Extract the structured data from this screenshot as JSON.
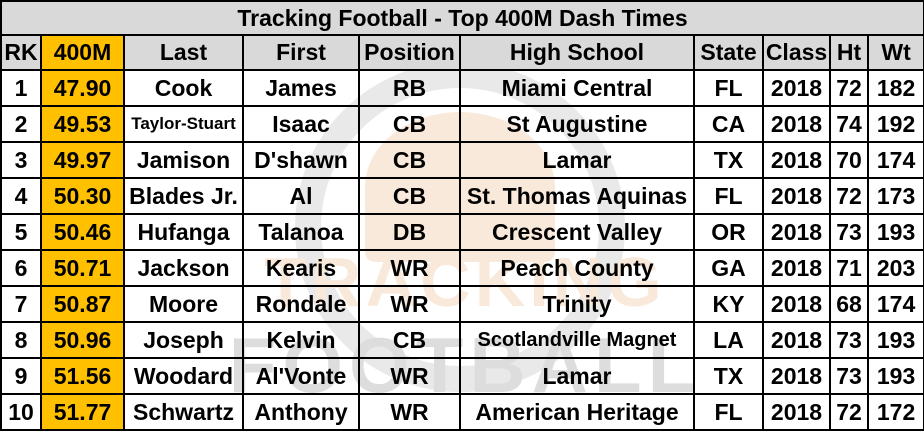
{
  "title": "Tracking Football - Top 400M Dash Times",
  "headers": [
    "RK",
    "400M",
    "Last",
    "First",
    "Position",
    "High School",
    "State",
    "Class",
    "Ht",
    "Wt"
  ],
  "rows": [
    {
      "rk": "1",
      "time": "47.90",
      "last": "Cook",
      "first": "James",
      "pos": "RB",
      "school": "Miami Central",
      "state": "FL",
      "class": "2018",
      "ht": "72",
      "wt": "182"
    },
    {
      "rk": "2",
      "time": "49.53",
      "last": "Taylor-Stuart",
      "first": "Isaac",
      "pos": "CB",
      "school": "St Augustine",
      "state": "CA",
      "class": "2018",
      "ht": "74",
      "wt": "192"
    },
    {
      "rk": "3",
      "time": "49.97",
      "last": "Jamison",
      "first": "D'shawn",
      "pos": "CB",
      "school": "Lamar",
      "state": "TX",
      "class": "2018",
      "ht": "70",
      "wt": "174"
    },
    {
      "rk": "4",
      "time": "50.30",
      "last": "Blades Jr.",
      "first": "Al",
      "pos": "CB",
      "school": "St. Thomas Aquinas",
      "state": "FL",
      "class": "2018",
      "ht": "72",
      "wt": "173"
    },
    {
      "rk": "5",
      "time": "50.46",
      "last": "Hufanga",
      "first": "Talanoa",
      "pos": "DB",
      "school": "Crescent Valley",
      "state": "OR",
      "class": "2018",
      "ht": "73",
      "wt": "193"
    },
    {
      "rk": "6",
      "time": "50.71",
      "last": "Jackson",
      "first": "Kearis",
      "pos": "WR",
      "school": "Peach County",
      "state": "GA",
      "class": "2018",
      "ht": "71",
      "wt": "203"
    },
    {
      "rk": "7",
      "time": "50.87",
      "last": "Moore",
      "first": "Rondale",
      "pos": "WR",
      "school": "Trinity",
      "state": "KY",
      "class": "2018",
      "ht": "68",
      "wt": "174"
    },
    {
      "rk": "8",
      "time": "50.96",
      "last": "Joseph",
      "first": "Kelvin",
      "pos": "CB",
      "school": "Scotlandville Magnet",
      "state": "LA",
      "class": "2018",
      "ht": "73",
      "wt": "193"
    },
    {
      "rk": "9",
      "time": "51.56",
      "last": "Woodard",
      "first": "Al'Vonte",
      "pos": "WR",
      "school": "Lamar",
      "state": "TX",
      "class": "2018",
      "ht": "73",
      "wt": "193"
    },
    {
      "rk": "10",
      "time": "51.77",
      "last": "Schwartz",
      "first": "Anthony",
      "pos": "WR",
      "school": "American Heritage",
      "state": "FL",
      "class": "2018",
      "ht": "72",
      "wt": "172"
    }
  ],
  "watermark": {
    "line1": "TRACKING",
    "line2": "FOOTBALL"
  },
  "colors": {
    "header_bg": "#d9d9d9",
    "time_highlight": "#ffc000",
    "watermark_orange": "#e07a1f"
  }
}
